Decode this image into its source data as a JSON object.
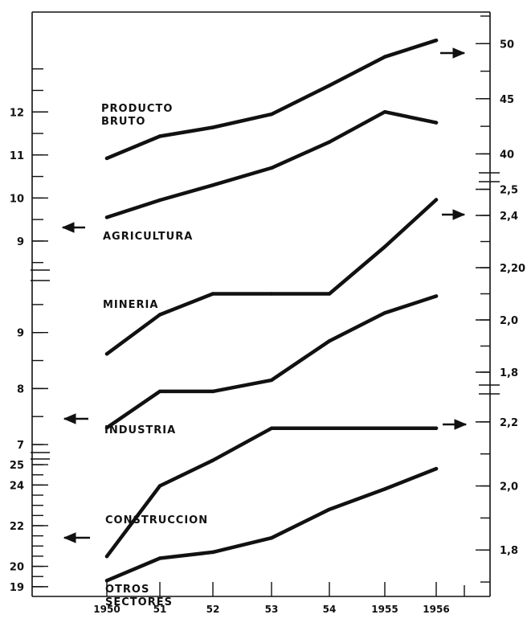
{
  "chart_data": {
    "type": "line",
    "x": [
      "1950",
      "51",
      "52",
      "53",
      "54",
      "1955",
      "1956"
    ],
    "axes": {
      "left_panels": [
        {
          "ticks": [
            9,
            10,
            11,
            12
          ],
          "ylim": [
            8.4,
            13.2
          ],
          "labels": [
            "9",
            "10",
            "11",
            "12"
          ]
        },
        {
          "ticks": [
            7,
            8,
            9
          ],
          "ylim": [
            6.9,
            9.9
          ],
          "labels": [
            "7",
            "8",
            "9"
          ]
        },
        {
          "ticks": [
            19,
            20,
            22,
            24,
            25
          ],
          "ylim": [
            18.6,
            25.2
          ],
          "labels": [
            "19",
            "20",
            "22",
            "24",
            "25"
          ]
        }
      ],
      "right_panels": [
        {
          "ticks": [
            40,
            45,
            50
          ],
          "ylim": [
            38.5,
            52.5
          ],
          "labels": [
            "40",
            "45",
            "50"
          ]
        },
        {
          "ticks": [
            1.8,
            2.0,
            2.2,
            2.4,
            2.5
          ],
          "ylim": [
            1.76,
            2.52
          ],
          "labels": [
            "1,8",
            "2,0",
            "2,20",
            "2,4",
            "2,5"
          ]
        },
        {
          "ticks": [
            1.8,
            2.0,
            2.2
          ],
          "ylim": [
            1.66,
            2.28
          ],
          "labels": [
            "1,8",
            "2,0",
            "2,2"
          ]
        }
      ]
    },
    "series": [
      {
        "name": "PRODUCTO BRUTO",
        "label_lines": [
          "PRODUCTO",
          "BRUTO"
        ],
        "axis": "right-top",
        "values": [
          39.6,
          41.6,
          42.4,
          43.6,
          46.2,
          48.8,
          50.3
        ]
      },
      {
        "name": "AGRICULTURA",
        "label_lines": [
          "AGRICULTURA"
        ],
        "axis": "left-top",
        "values": [
          9.55,
          9.95,
          10.3,
          10.7,
          11.3,
          12.0,
          11.75
        ]
      },
      {
        "name": "MINERIA",
        "label_lines": [
          "MINERIA"
        ],
        "axis": "right-middle",
        "values": [
          1.87,
          2.02,
          2.1,
          2.1,
          2.1,
          2.28,
          2.46
        ]
      },
      {
        "name": "INDUSTRIA",
        "label_lines": [
          "INDUSTRIA"
        ],
        "axis": "left-middle",
        "values": [
          7.3,
          7.95,
          7.95,
          8.15,
          8.85,
          9.35,
          9.65
        ]
      },
      {
        "name": "CONSTRUCCION",
        "label_lines": [
          "CONSTRUCCION"
        ],
        "axis": "right-bottom",
        "values": [
          1.78,
          2.0,
          2.08,
          2.18,
          2.18,
          2.18,
          2.18
        ]
      },
      {
        "name": "OTROS SECTORES",
        "label_lines": [
          "OTROS",
          "SECTORES"
        ],
        "axis": "left-bottom",
        "values": [
          19.3,
          20.4,
          20.7,
          21.4,
          22.8,
          23.8,
          24.8
        ]
      }
    ]
  }
}
